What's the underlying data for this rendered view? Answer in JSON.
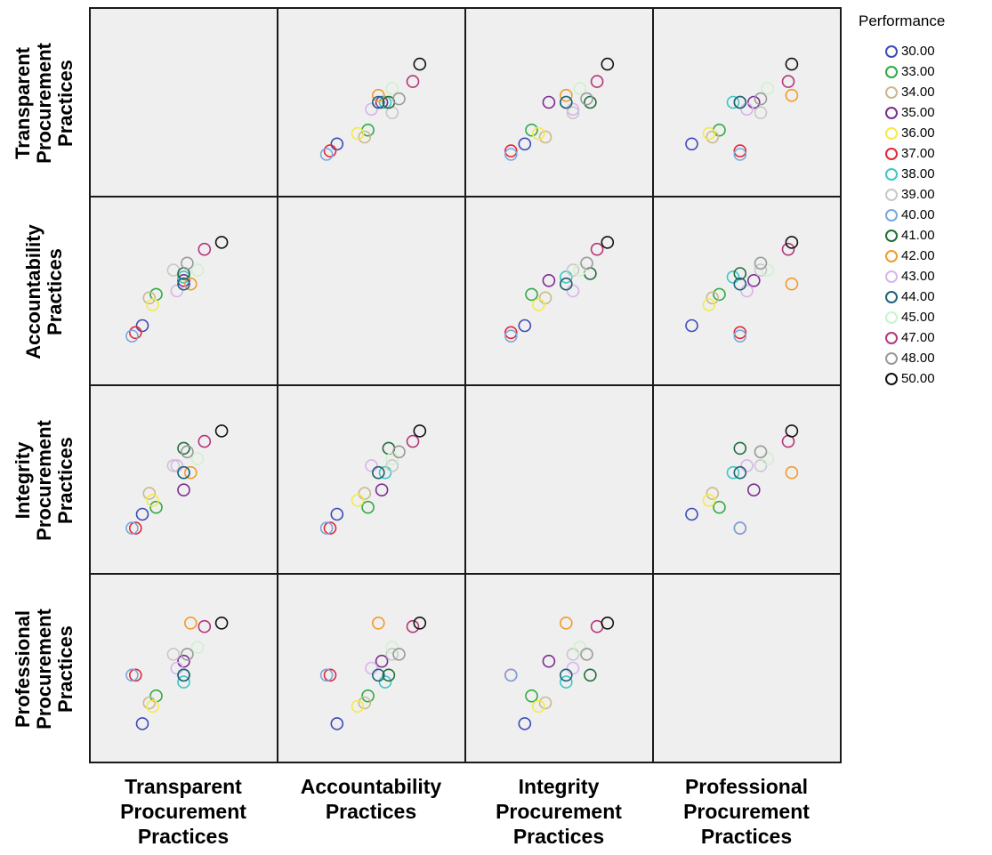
{
  "chart_data": {
    "type": "scatter",
    "title": "",
    "variables": [
      {
        "key": "T",
        "label": [
          "Transparent",
          "Procurement",
          "Practices"
        ]
      },
      {
        "key": "A",
        "label": [
          "Accountability",
          "Practices"
        ]
      },
      {
        "key": "I",
        "label": [
          "Integrity",
          "Procurement",
          "Practices"
        ]
      },
      {
        "key": "P",
        "label": [
          "Professional",
          "Procurement",
          "Practices"
        ]
      }
    ],
    "range": [
      1,
      5
    ],
    "legend": {
      "title": "Performance",
      "placement": "right",
      "items": [
        {
          "label": "30.00",
          "color": "#3d4ab8"
        },
        {
          "label": "33.00",
          "color": "#2eab44"
        },
        {
          "label": "34.00",
          "color": "#c9b98c"
        },
        {
          "label": "35.00",
          "color": "#7a2d90"
        },
        {
          "label": "36.00",
          "color": "#f5e94a"
        },
        {
          "label": "37.00",
          "color": "#e32636"
        },
        {
          "label": "38.00",
          "color": "#3cc6c6"
        },
        {
          "label": "39.00",
          "color": "#c8c8c8"
        },
        {
          "label": "40.00",
          "color": "#7aa6dd"
        },
        {
          "label": "41.00",
          "color": "#1f6e3a"
        },
        {
          "label": "42.00",
          "color": "#f39a2a"
        },
        {
          "label": "43.00",
          "color": "#d9b3ee"
        },
        {
          "label": "44.00",
          "color": "#1d6478"
        },
        {
          "label": "45.00",
          "color": "#ccf2cc"
        },
        {
          "label": "47.00",
          "color": "#b7337a"
        },
        {
          "label": "48.00",
          "color": "#999999"
        },
        {
          "label": "50.00",
          "color": "#111111"
        }
      ]
    },
    "points": [
      {
        "group": "30.00",
        "T": 1.8,
        "A": 2.0,
        "I": 2.0,
        "P": 1.4
      },
      {
        "group": "33.00",
        "T": 2.2,
        "A": 2.9,
        "I": 2.2,
        "P": 2.2
      },
      {
        "group": "34.00",
        "T": 2.0,
        "A": 2.8,
        "I": 2.6,
        "P": 2.0
      },
      {
        "group": "35.00",
        "T": 3.0,
        "A": 3.3,
        "I": 2.7,
        "P": 3.2
      },
      {
        "group": "36.00",
        "T": 2.1,
        "A": 2.6,
        "I": 2.4,
        "P": 1.9
      },
      {
        "group": "37.00",
        "T": 1.6,
        "A": 1.8,
        "I": 1.6,
        "P": 2.8
      },
      {
        "group": "38.00",
        "T": 3.0,
        "A": 3.4,
        "I": 3.2,
        "P": 2.6
      },
      {
        "group": "39.00",
        "T": 2.7,
        "A": 3.6,
        "I": 3.4,
        "P": 3.4
      },
      {
        "group": "40.00",
        "T": 1.5,
        "A": 1.7,
        "I": 1.6,
        "P": 2.8
      },
      {
        "group": "41.00",
        "T": 3.0,
        "A": 3.5,
        "I": 3.9,
        "P": 2.8
      },
      {
        "group": "42.00",
        "T": 3.2,
        "A": 3.2,
        "I": 3.2,
        "P": 4.3
      },
      {
        "group": "43.00",
        "T": 2.8,
        "A": 3.0,
        "I": 3.4,
        "P": 3.0
      },
      {
        "group": "44.00",
        "T": 3.0,
        "A": 3.2,
        "I": 3.2,
        "P": 2.8
      },
      {
        "group": "45.00",
        "T": 3.4,
        "A": 3.6,
        "I": 3.6,
        "P": 3.6
      },
      {
        "group": "47.00",
        "T": 3.6,
        "A": 4.2,
        "I": 4.1,
        "P": 4.2
      },
      {
        "group": "48.00",
        "T": 3.1,
        "A": 3.8,
        "I": 3.8,
        "P": 3.4
      },
      {
        "group": "50.00",
        "T": 4.1,
        "A": 4.4,
        "I": 4.4,
        "P": 4.3
      }
    ]
  }
}
